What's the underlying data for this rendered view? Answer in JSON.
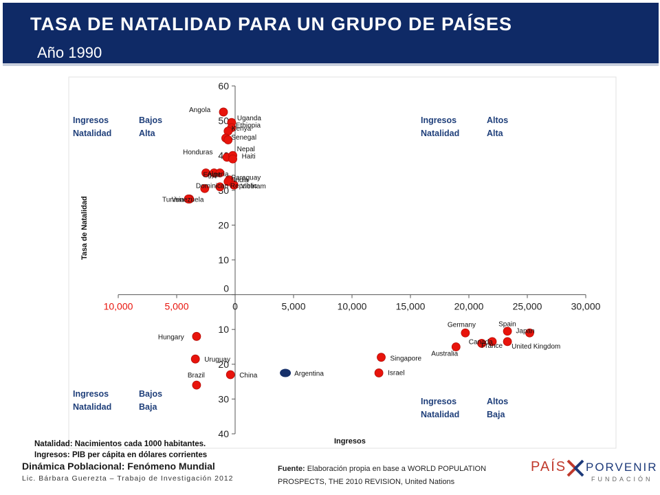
{
  "header": {
    "title": "TASA DE NATALIDAD PARA UN GRUPO DE PAÍSES",
    "subtitle": "Año 1990"
  },
  "quadrants": {
    "tl": {
      "l1a": "Ingresos",
      "l1b": "Bajos",
      "l2a": "Natalidad",
      "l2b": "Alta"
    },
    "tr": {
      "l1a": "Ingresos",
      "l1b": "Altos",
      "l2a": "Natalidad",
      "l2b": "Alta"
    },
    "bl": {
      "l1a": "Ingresos",
      "l1b": "Bajos",
      "l2a": "Natalidad",
      "l2b": "Baja"
    },
    "br": {
      "l1a": "Ingresos",
      "l1b": "Altos",
      "l2a": "Natalidad",
      "l2b": "Baja"
    }
  },
  "notes": {
    "line1": "Natalidad: Nacimientos cada 1000 habitantes.",
    "line2": "Ingresos: PIB per cápita en dólares corrientes"
  },
  "footer": {
    "course": "Dinámica Poblacional: Fenómeno Mundial",
    "author": "Lic. Bárbara Guerezta – Trabajo de Investigación 2012",
    "source_label": "Fuente:",
    "source_text": "Elaboración propia en base a WORLD POPULATION PROSPECTS, THE 2010 REVISION, United Nations"
  },
  "logo": {
    "pais": "PAÍS",
    "porvenir": "PORVENIR",
    "fundacion": "FUNDACIÓN"
  },
  "colors": {
    "banner": "#0f2a66",
    "point": "#e8140c",
    "highlight": "#16306a",
    "negative_tick": "#e8140c"
  },
  "chart_data": {
    "type": "scatter",
    "xlabel": "Ingresos",
    "ylabel": "Tasa de Natalidad",
    "xlim": [
      -10000,
      30000
    ],
    "ylim": [
      -40,
      60
    ],
    "xticks": [
      -10000,
      -5000,
      0,
      5000,
      10000,
      15000,
      20000,
      25000,
      30000
    ],
    "xtick_labels": [
      "10,000",
      "5,000",
      "0",
      "5,000",
      "10,000",
      "15,000",
      "20,000",
      "25,000",
      "30,000"
    ],
    "yticks": [
      60,
      50,
      40,
      30,
      20,
      10,
      0,
      -10,
      -20,
      -30,
      -40
    ],
    "ytick_labels": [
      "60",
      "50",
      "40",
      "30",
      "20",
      "10",
      "0",
      "10",
      "20",
      "30",
      "40"
    ],
    "grid": false,
    "points": [
      {
        "label": "Angola",
        "x": -1000,
        "y": 52.5
      },
      {
        "label": "Uganda",
        "x": -300,
        "y": 49.5
      },
      {
        "label": "Ethiopia",
        "x": -300,
        "y": 48
      },
      {
        "label": "Kenya",
        "x": -600,
        "y": 47
      },
      {
        "label": "Senegal",
        "x": -800,
        "y": 45
      },
      {
        "label": "",
        "x": -600,
        "y": 44.5
      },
      {
        "label": "Honduras",
        "x": -700,
        "y": 39.5
      },
      {
        "label": "Nepal",
        "x": -200,
        "y": 40
      },
      {
        "label": "Haiti",
        "x": -200,
        "y": 39
      },
      {
        "label": "Egypt",
        "x": -2500,
        "y": 35
      },
      {
        "label": "Algeria",
        "x": -1800,
        "y": 35
      },
      {
        "label": "",
        "x": -1300,
        "y": 35
      },
      {
        "label": "Paraguay",
        "x": -500,
        "y": 33
      },
      {
        "label": "India",
        "x": -600,
        "y": 32.5
      },
      {
        "label": "Vietnam",
        "x": -100,
        "y": 31.5
      },
      {
        "label": "Dominican Republic",
        "x": -1300,
        "y": 31
      },
      {
        "label": "",
        "x": -2600,
        "y": 30.5
      },
      {
        "label": "Venezuela",
        "x": -3900,
        "y": 27.5
      },
      {
        "label": "Tunisia",
        "x": -4000,
        "y": 27.5
      },
      {
        "label": "Hungary",
        "x": -3300,
        "y": -12
      },
      {
        "label": "Uruguay",
        "x": -3400,
        "y": -18.5
      },
      {
        "label": "Brazil",
        "x": -3300,
        "y": -26
      },
      {
        "label": "China",
        "x": -400,
        "y": -23
      },
      {
        "label": "Argentina",
        "x": 4300,
        "y": -22.5,
        "highlight": true
      },
      {
        "label": "Singapore",
        "x": 12500,
        "y": -18
      },
      {
        "label": "Israel",
        "x": 12300,
        "y": -22.5
      },
      {
        "label": "Germany",
        "x": 19700,
        "y": -11
      },
      {
        "label": "Australia",
        "x": 18900,
        "y": -15
      },
      {
        "label": "Canada",
        "x": 21100,
        "y": -14
      },
      {
        "label": "France",
        "x": 22000,
        "y": -13.5
      },
      {
        "label": "Spain",
        "x": 23300,
        "y": -10.5
      },
      {
        "label": "Japan",
        "x": 25200,
        "y": -11
      },
      {
        "label": "United Kingdom",
        "x": 23300,
        "y": -13.5
      }
    ]
  }
}
